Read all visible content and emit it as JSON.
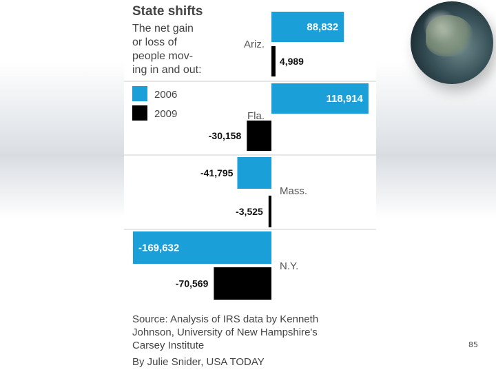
{
  "chart_data": {
    "type": "bar",
    "orientation": "horizontal",
    "title": "State shifts",
    "subtitle": [
      "The net gain",
      "or loss of",
      "people mov-",
      "ing in and out:"
    ],
    "categories": [
      "Ariz.",
      "Fla.",
      "Mass.",
      "N.Y."
    ],
    "series": [
      {
        "name": "2006",
        "color": "#1a9fd9",
        "values": [
          88832,
          118914,
          -41795,
          -169632
        ]
      },
      {
        "name": "2009",
        "color": "#000000",
        "values": [
          4989,
          -30158,
          -3525,
          -70569
        ]
      }
    ],
    "value_labels": {
      "2006": [
        "88,832",
        "118,914",
        "-41,795",
        "-169,632"
      ],
      "2009": [
        "4,989",
        "-30,158",
        "-3,525",
        "-70,569"
      ]
    },
    "legend_position": "left",
    "source": [
      "Source: Analysis of IRS data by Kenneth",
      "Johnson, University of New Hampshire's",
      "Carsey Institute"
    ],
    "credit": "By Julie Snider, USA TODAY"
  },
  "slide": {
    "page_number": "85"
  },
  "colors": {
    "series_2006": "#1a9fd9",
    "series_2009": "#000000",
    "divider": "#cccccc"
  }
}
